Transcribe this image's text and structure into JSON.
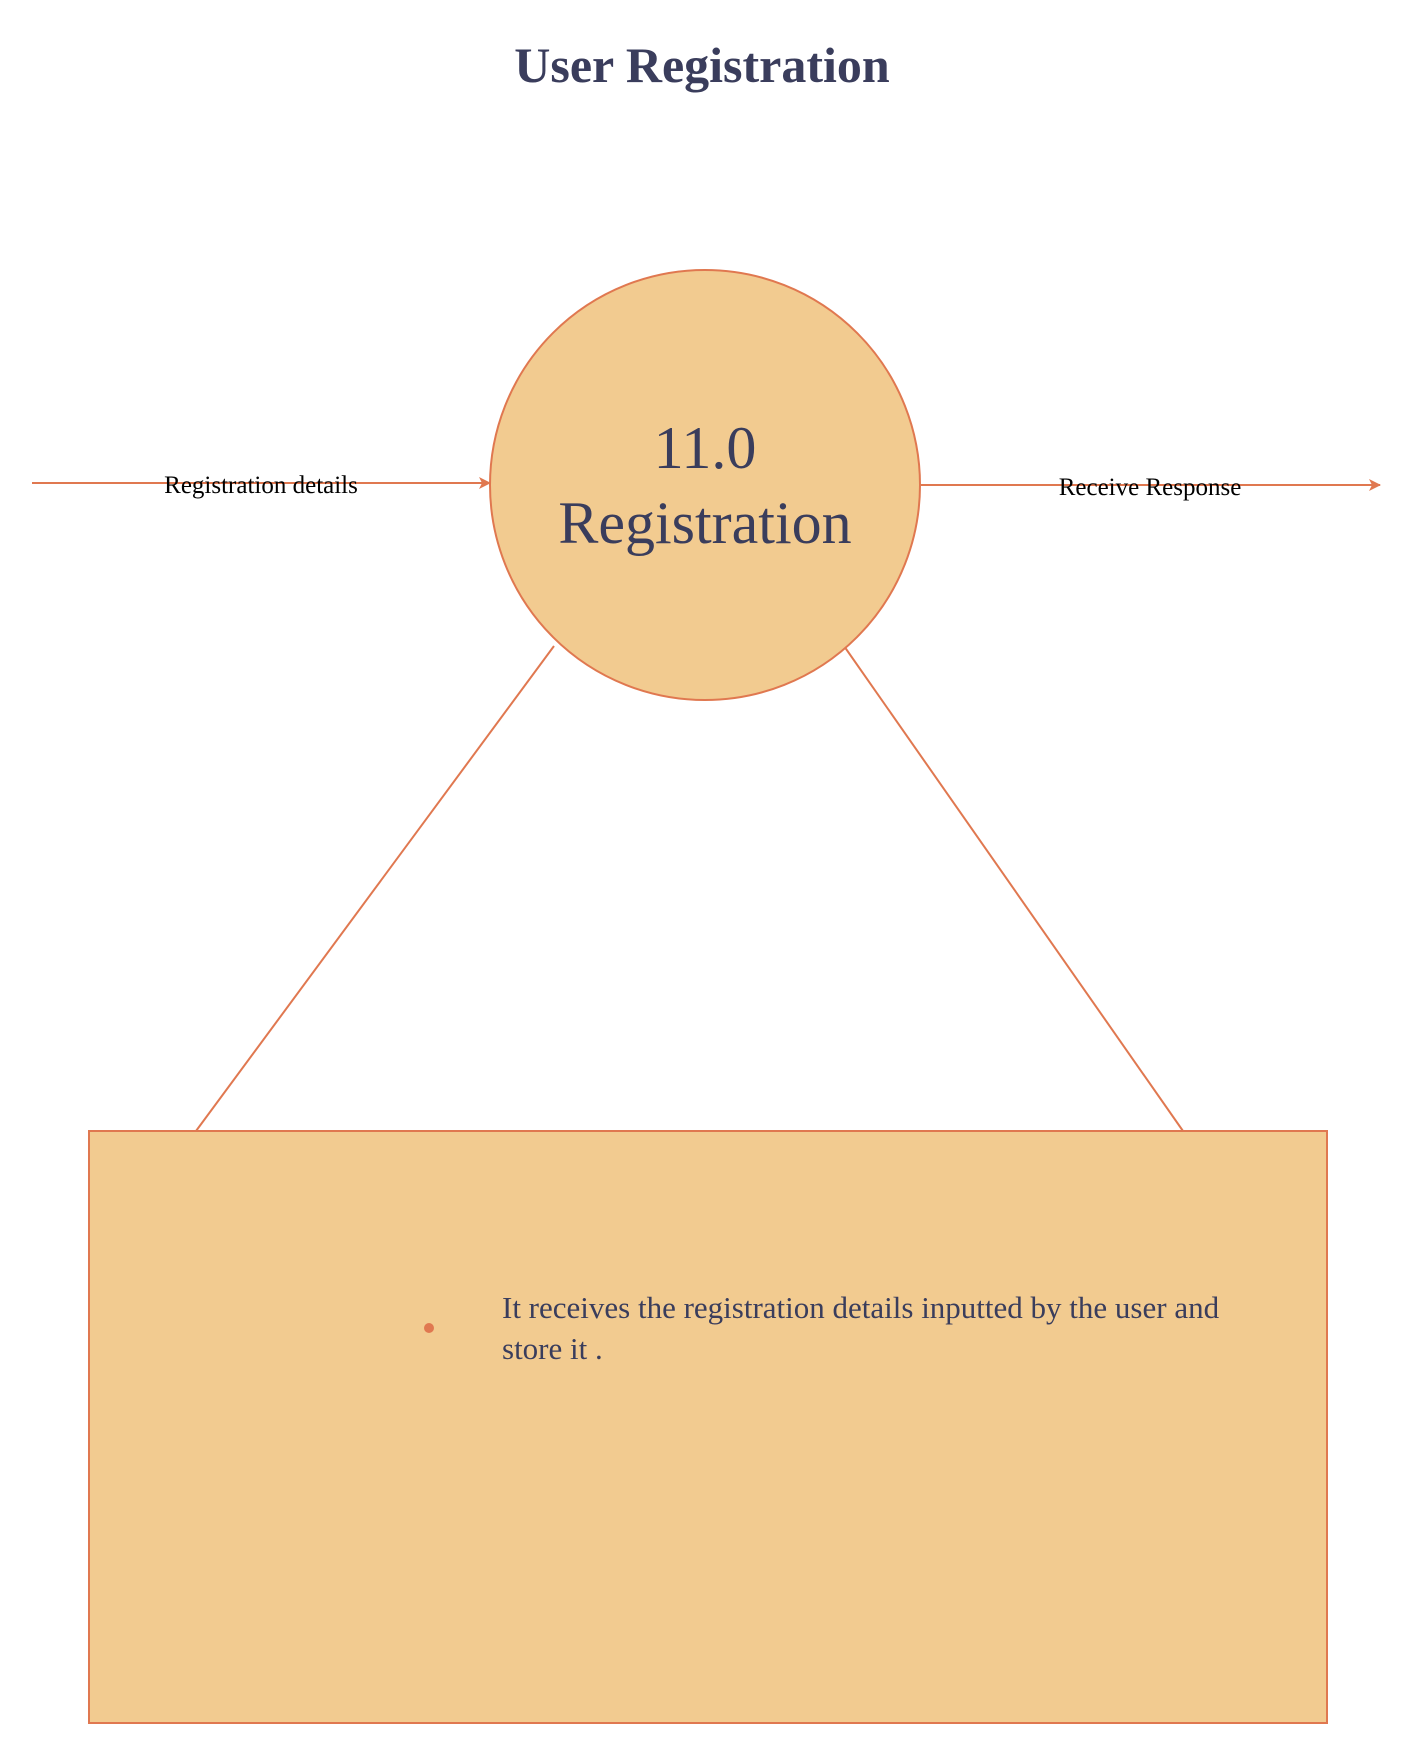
{
  "title": "User Registration",
  "colors": {
    "title_text": "#3a3d5c",
    "stroke": "#e07850",
    "fill": "#f2cb90",
    "text": "#3a3d5c"
  },
  "process": {
    "number": "11.0",
    "name": "Registration"
  },
  "flows": {
    "incoming": "Registration details",
    "outgoing": "Receive Response"
  },
  "note": {
    "bullet_line_1": "It receives the registration details inputted by the user and",
    "bullet_line_2": "store it ."
  }
}
